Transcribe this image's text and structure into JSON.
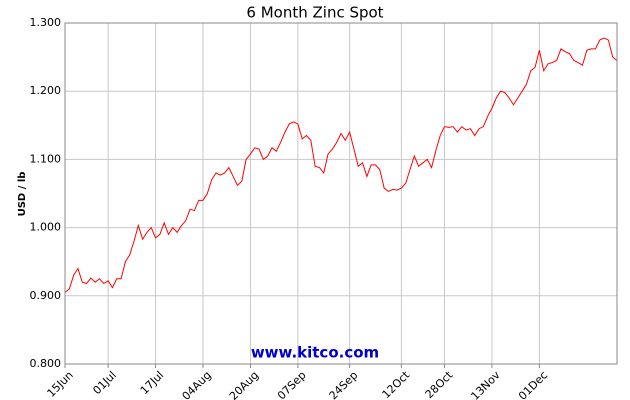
{
  "chart_data": {
    "type": "line",
    "title": "6 Month Zinc Spot",
    "y_label": "USD / lb",
    "watermark": "www.kitco.com",
    "categories": [
      "15Jun",
      null,
      null,
      null,
      null,
      null,
      null,
      null,
      null,
      null,
      "01Jul",
      null,
      null,
      null,
      null,
      null,
      null,
      null,
      null,
      null,
      null,
      "17Jul",
      null,
      null,
      null,
      null,
      null,
      null,
      null,
      null,
      null,
      null,
      "04Aug",
      null,
      null,
      null,
      null,
      null,
      null,
      null,
      null,
      null,
      null,
      "20Aug",
      null,
      null,
      null,
      null,
      null,
      null,
      null,
      null,
      null,
      null,
      "07Sep",
      null,
      null,
      null,
      null,
      null,
      null,
      null,
      null,
      null,
      null,
      null,
      "24Sep",
      null,
      null,
      null,
      null,
      null,
      null,
      null,
      null,
      null,
      null,
      null,
      "12Oct",
      null,
      null,
      null,
      null,
      null,
      null,
      null,
      null,
      null,
      "28Oct",
      null,
      null,
      null,
      null,
      null,
      null,
      null,
      null,
      null,
      null,
      "13Nov",
      null,
      null,
      null,
      null,
      null,
      null,
      null,
      null,
      null,
      null,
      "01Dec",
      null,
      null,
      null,
      null,
      null,
      null,
      null,
      null,
      null,
      null,
      null,
      null,
      null,
      null,
      null,
      null,
      null,
      null
    ],
    "series": [
      {
        "name": "Zinc",
        "color": "#ff0000",
        "values": [
          0.905,
          0.91,
          0.93,
          0.94,
          0.92,
          0.918,
          0.926,
          0.92,
          0.925,
          0.918,
          0.922,
          0.912,
          0.925,
          0.925,
          0.95,
          0.96,
          0.98,
          1.003,
          0.983,
          0.993,
          1.0,
          0.985,
          0.99,
          1.007,
          0.99,
          1.0,
          0.993,
          1.003,
          1.01,
          1.027,
          1.025,
          1.04,
          1.04,
          1.05,
          1.07,
          1.08,
          1.077,
          1.08,
          1.088,
          1.075,
          1.062,
          1.068,
          1.1,
          1.108,
          1.117,
          1.115,
          1.1,
          1.105,
          1.117,
          1.112,
          1.125,
          1.14,
          1.152,
          1.155,
          1.152,
          1.13,
          1.135,
          1.128,
          1.09,
          1.088,
          1.08,
          1.108,
          1.115,
          1.125,
          1.138,
          1.128,
          1.14,
          1.115,
          1.09,
          1.095,
          1.075,
          1.092,
          1.092,
          1.085,
          1.058,
          1.053,
          1.056,
          1.055,
          1.058,
          1.065,
          1.085,
          1.105,
          1.09,
          1.095,
          1.1,
          1.088,
          1.113,
          1.135,
          1.148,
          1.147,
          1.148,
          1.14,
          1.148,
          1.143,
          1.145,
          1.135,
          1.145,
          1.148,
          1.163,
          1.175,
          1.19,
          1.2,
          1.198,
          1.19,
          1.18,
          1.19,
          1.2,
          1.21,
          1.23,
          1.235,
          1.26,
          1.23,
          1.24,
          1.242,
          1.245,
          1.262,
          1.258,
          1.255,
          1.245,
          1.242,
          1.238,
          1.26,
          1.262,
          1.262,
          1.275,
          1.278,
          1.275,
          1.25,
          1.245
        ]
      }
    ],
    "ylim": [
      0.8,
      1.3
    ],
    "yticks": [
      {
        "value": 0.8,
        "label": "0.800"
      },
      {
        "value": 0.9,
        "label": "0.900"
      },
      {
        "value": 1.0,
        "label": "1.000"
      },
      {
        "value": 1.1,
        "label": "1.100"
      },
      {
        "value": 1.2,
        "label": "1.200"
      },
      {
        "value": 1.3,
        "label": "1.300"
      }
    ],
    "grid": true
  }
}
